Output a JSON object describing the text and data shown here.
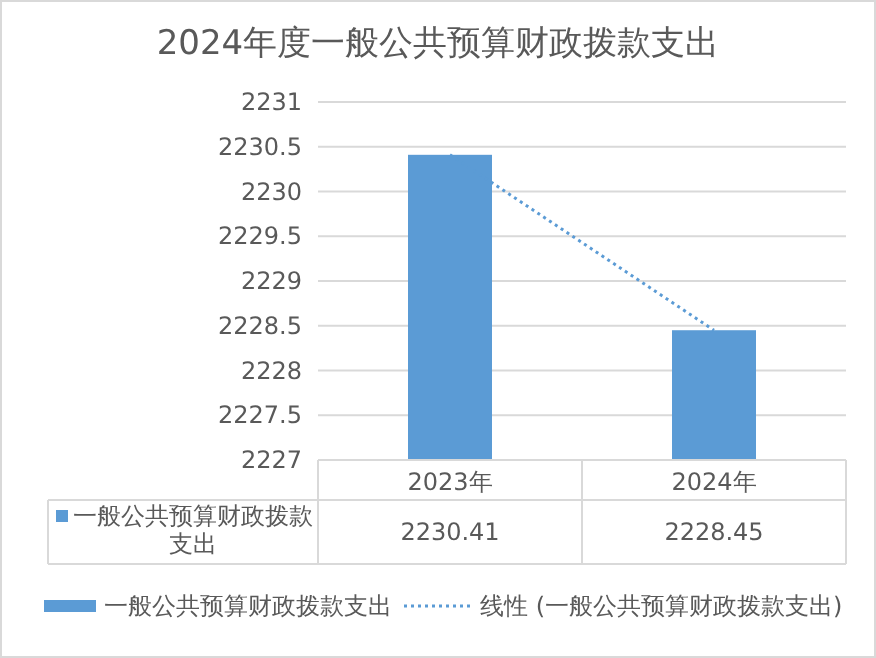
{
  "chart_data": {
    "type": "bar",
    "title": "2024年度一般公共预算财政拨款支出",
    "categories": [
      "2023年",
      "2024年"
    ],
    "series": [
      {
        "name": "一般公共预算财政拨款支出",
        "color": "#5b9bd5",
        "values": [
          2230.41,
          2228.45
        ],
        "value_labels": [
          "2230.41",
          "2228.45"
        ]
      },
      {
        "name": "线性 (一般公共预算财政拨款支出)",
        "type": "line",
        "color": "#5b9bd5",
        "line_style": "dotted",
        "values": [
          2230.41,
          2228.45
        ]
      }
    ],
    "ylim": [
      2227,
      2231
    ],
    "yticks": [
      2227,
      2227.5,
      2228,
      2228.5,
      2229,
      2229.5,
      2230,
      2230.5,
      2231
    ],
    "grid": "y",
    "legend": "bottom"
  }
}
